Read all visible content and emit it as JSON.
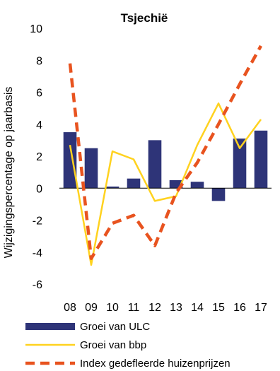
{
  "chart_data": {
    "type": "bar",
    "title": "Tsjechië",
    "ylabel": "Wijzigingspercentage op jaarbasis",
    "xlabel": "",
    "categories": [
      "08",
      "09",
      "10",
      "11",
      "12",
      "13",
      "14",
      "15",
      "16",
      "17"
    ],
    "ylim": [
      -6,
      10
    ],
    "yticks": [
      10,
      8,
      6,
      4,
      2,
      0,
      -2,
      -4,
      -6
    ],
    "grid": false,
    "legend_position": "bottom",
    "series": [
      {
        "name": "Groei van ULC",
        "type": "bar",
        "color": "#2e3478",
        "values": [
          3.5,
          2.5,
          0.1,
          0.6,
          3.0,
          0.5,
          0.4,
          -0.8,
          3.1,
          3.6
        ]
      },
      {
        "name": "Groei van bbp",
        "type": "line",
        "color": "#ffd21f",
        "values": [
          2.7,
          -4.8,
          2.3,
          1.8,
          -0.8,
          -0.5,
          2.7,
          5.3,
          2.5,
          4.3
        ]
      },
      {
        "name": "Index gedefleerde huizenprijzen",
        "type": "line-dashed",
        "color": "#e8531f",
        "values": [
          7.8,
          -4.4,
          -2.2,
          -1.7,
          -3.6,
          -0.3,
          1.6,
          4.0,
          6.5,
          8.9
        ]
      }
    ]
  }
}
